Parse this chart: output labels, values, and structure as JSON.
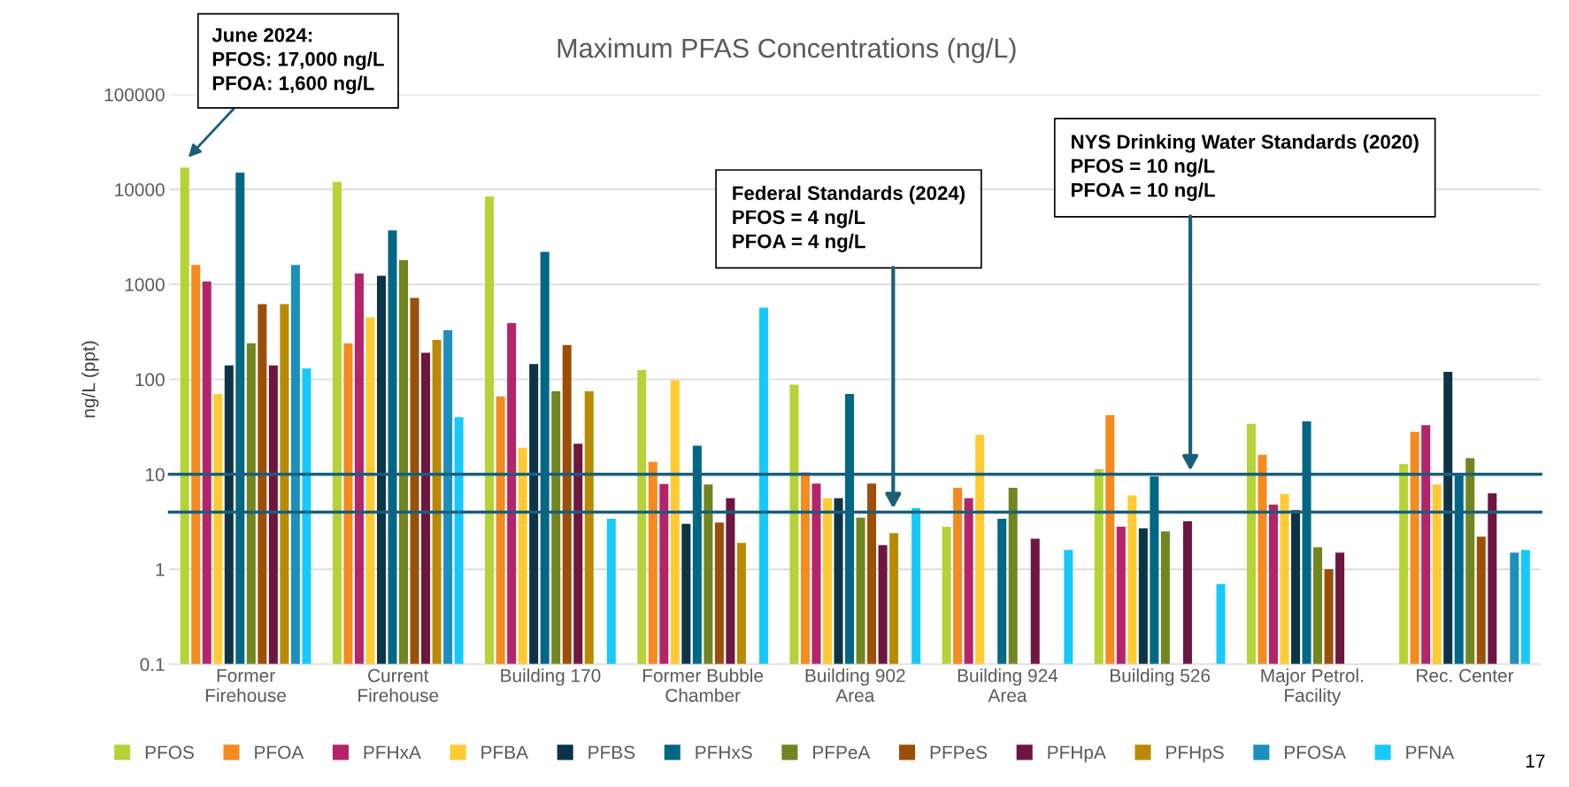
{
  "chart_data": {
    "type": "bar",
    "title": "Maximum PFAS Concentrations (ng/L)",
    "ylabel": "ng/L (ppt)",
    "log": true,
    "grid": "y",
    "legend": "bottom",
    "categories": [
      "Former\nFirehouse",
      "Current\nFirehouse",
      "Building 170",
      "Former Bubble\nChamber",
      "Building 902\nArea",
      "Building 924\nArea",
      "Building 526",
      "Major Petrol.\nFacility",
      "Rec. Center"
    ],
    "ylim": [
      0.1,
      100000
    ],
    "yticks": [
      0.1,
      1,
      10,
      100,
      1000,
      10000,
      100000
    ],
    "series": [
      {
        "name": "PFOS",
        "color": "#b5d337",
        "values": [
          17000,
          12000,
          8400,
          125,
          88,
          2.8,
          11.3,
          34,
          12.8
        ]
      },
      {
        "name": "PFOA",
        "color": "#f58a1f",
        "values": [
          1600,
          240,
          66,
          13.5,
          10.5,
          7.2,
          42,
          16,
          28
        ]
      },
      {
        "name": "PFHxA",
        "color": "#b5246a",
        "values": [
          1070,
          1300,
          390,
          7.9,
          8,
          5.6,
          2.8,
          4.8,
          33
        ]
      },
      {
        "name": "PFBA",
        "color": "#ffcb31",
        "values": [
          70,
          450,
          19,
          98,
          5.6,
          26,
          6,
          6.2,
          7.8
        ]
      },
      {
        "name": "PFBS",
        "color": "#0c3446",
        "values": [
          140,
          1230,
          145,
          3.0,
          5.6,
          null,
          2.7,
          4.2,
          120
        ]
      },
      {
        "name": "PFHxS",
        "color": "#006785",
        "values": [
          15000,
          3700,
          2200,
          20,
          70,
          3.4,
          9.5,
          36,
          10.4
        ]
      },
      {
        "name": "PFPeA",
        "color": "#718620",
        "values": [
          240,
          1800,
          75,
          7.8,
          3.5,
          7.2,
          2.5,
          1.7,
          14.8
        ]
      },
      {
        "name": "PFPeS",
        "color": "#9c4f08",
        "values": [
          620,
          720,
          230,
          3.1,
          8,
          null,
          null,
          1.0,
          2.2
        ]
      },
      {
        "name": "PFHpA",
        "color": "#6c1640",
        "values": [
          140,
          190,
          21,
          5.6,
          1.8,
          2.1,
          3.2,
          1.5,
          6.3
        ]
      },
      {
        "name": "PFHpS",
        "color": "#b88a00",
        "values": [
          620,
          260,
          75,
          1.9,
          2.4,
          null,
          null,
          null,
          null
        ]
      },
      {
        "name": "PFOSA",
        "color": "#1c8fbd",
        "values": [
          1600,
          330,
          null,
          null,
          null,
          null,
          null,
          null,
          1.5
        ]
      },
      {
        "name": "PFNA",
        "color": "#16c9fa",
        "values": [
          130,
          40,
          3.4,
          570,
          4.4,
          1.6,
          0.7,
          null,
          1.6
        ]
      }
    ],
    "ref_lines": [
      {
        "axis": "y",
        "value": 10,
        "color": "#1a5f7a"
      },
      {
        "axis": "y",
        "value": 4,
        "color": "#1a5f7a"
      }
    ],
    "annotations": [
      "June 2024:\nPFOS: 17,000 ng/L\nPFOA: 1,600 ng/L",
      "NYS Drinking Water Standards (2020)\nPFOS = 10 ng/L\nPFOA = 10 ng/L",
      "Federal Standards (2024)\nPFOS = 4 ng/L\nPFOA = 4 ng/L",
      "17"
    ]
  }
}
